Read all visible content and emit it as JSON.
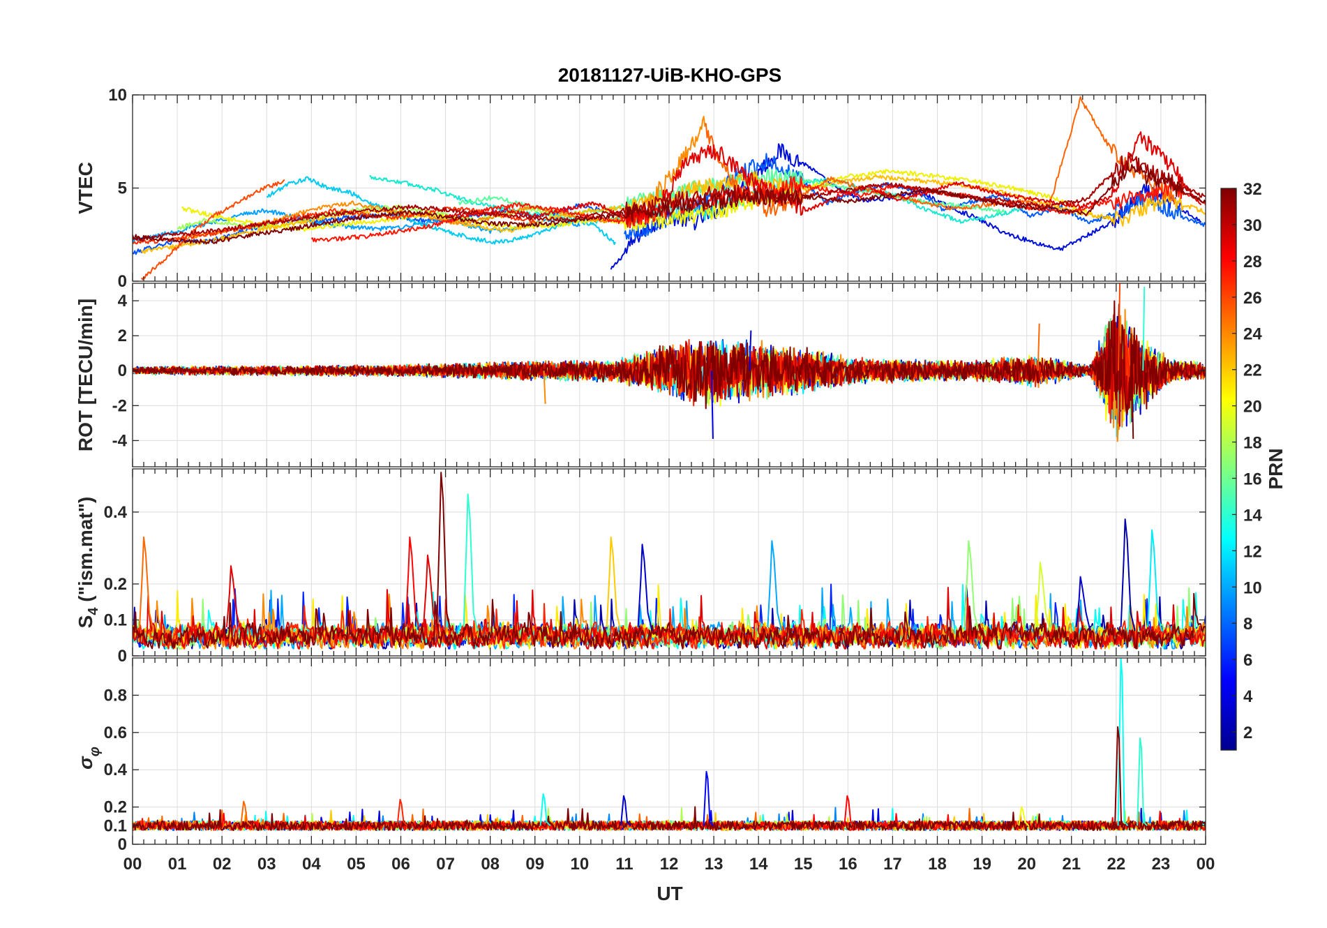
{
  "chart_data": {
    "type": "line",
    "title": "20181127-UiB-KHO-GPS",
    "xlabel": "UT",
    "xlim": [
      0,
      24
    ],
    "x_tick_labels": [
      "00",
      "01",
      "02",
      "03",
      "04",
      "05",
      "06",
      "07",
      "08",
      "09",
      "10",
      "11",
      "12",
      "13",
      "14",
      "15",
      "16",
      "17",
      "18",
      "19",
      "20",
      "21",
      "22",
      "23",
      "00"
    ],
    "panels": [
      {
        "id": "vtec",
        "ylabel": "VTEC",
        "ylim": [
          0,
          10
        ],
        "y_ticks": [
          0,
          5,
          10
        ],
        "y_tick_labels": [
          "0",
          "5",
          "10"
        ],
        "series": [
          {
            "name": "PRN 2",
            "prn": 2,
            "color": "#0010d8",
            "t_start": 10.7,
            "t_end": 23.9,
            "values": [
              0.6,
              2.5,
              3.5,
              3.2,
              4.0,
              5.5,
              7.0,
              6.2,
              5.0,
              4.3,
              4.5,
              4.8,
              4.0,
              3.4,
              2.6,
              2.1,
              1.7,
              2.5,
              3.3,
              4.8,
              4.2,
              3.2
            ]
          },
          {
            "name": "PRN 5",
            "prn": 5,
            "color": "#0052ff",
            "t_start": 0.0,
            "t_end": 10.5,
            "values": [
              1.5,
              1.9,
              2.2,
              2.1,
              2.4,
              2.8,
              3.1,
              3.3,
              3.2,
              3.4,
              3.5,
              3.6,
              3.3,
              3.2,
              3.4,
              3.6,
              3.8,
              3.5,
              3.6,
              4.1,
              3.8
            ]
          },
          {
            "name": "PRN 7",
            "prn": 7,
            "color": "#005cff",
            "t_start": 11.0,
            "t_end": 24.0,
            "values": [
              2.5,
              3.0,
              3.8,
              4.5,
              5.8,
              6.5,
              5.5,
              4.2,
              4.8,
              5.2,
              4.9,
              3.8,
              4.3,
              4.6,
              3.5,
              4.0,
              3.1,
              3.8,
              4.5,
              3.6,
              3.0
            ]
          },
          {
            "name": "PRN 9",
            "prn": 9,
            "color": "#00a0ff",
            "t_start": 0.0,
            "t_end": 10.0,
            "values": [
              2.2,
              2.4,
              2.7,
              3.0,
              3.3,
              3.6,
              3.8,
              3.5,
              3.2,
              3.0,
              2.9,
              2.8,
              2.9,
              3.1,
              3.3,
              3.0,
              2.7,
              2.8,
              3.1,
              3.4,
              3.0
            ]
          },
          {
            "name": "PRN 11",
            "prn": 11,
            "color": "#00caf0",
            "t_start": 3.0,
            "t_end": 10.8,
            "values": [
              4.5,
              5.2,
              5.5,
              5.0,
              4.8,
              4.2,
              3.8,
              3.3,
              2.9,
              2.6,
              2.3,
              2.1,
              2.2,
              2.5,
              2.9,
              3.3,
              3.0,
              2.0
            ]
          },
          {
            "name": "PRN 13",
            "prn": 13,
            "color": "#18e8d0",
            "t_start": 5.3,
            "t_end": 20.0,
            "values": [
              5.6,
              5.3,
              4.9,
              4.3,
              3.9,
              3.6,
              3.4,
              3.2,
              3.5,
              3.8,
              3.6,
              4.2,
              4.8,
              5.2,
              5.5,
              5.0,
              4.6,
              3.8,
              3.2,
              3.5,
              4.0
            ]
          },
          {
            "name": "PRN 15",
            "prn": 15,
            "color": "#55ff9c",
            "t_start": 7.3,
            "t_end": 19.5,
            "values": [
              4.2,
              4.5,
              4.0,
              3.6,
              3.8,
              4.3,
              4.8,
              5.1,
              5.5,
              5.6,
              5.2,
              4.9,
              4.5,
              4.2,
              4.0,
              3.7
            ]
          },
          {
            "name": "PRN 18",
            "prn": 18,
            "color": "#a0ff55",
            "t_start": 1.0,
            "t_end": 9.5,
            "values": [
              2.8,
              3.3,
              3.1,
              2.9,
              3.0,
              3.4,
              3.7,
              3.9,
              4.0,
              3.8,
              3.5,
              3.3,
              3.6,
              3.9,
              3.5
            ]
          },
          {
            "name": "PRN 20",
            "prn": 20,
            "color": "#f0f000",
            "t_start": 1.1,
            "t_end": 21.5,
            "values": [
              3.9,
              3.4,
              3.0,
              2.8,
              3.1,
              3.3,
              3.6,
              3.2,
              2.9,
              3.0,
              3.3,
              3.1,
              3.4,
              3.8,
              4.4,
              5.0,
              5.6,
              5.9,
              5.7,
              5.4,
              5.0,
              4.5,
              3.5
            ]
          },
          {
            "name": "PRN 22",
            "prn": 22,
            "color": "#ffbe00",
            "t_start": 0.2,
            "t_end": 24.0,
            "values": [
              1.6,
              1.9,
              2.3,
              2.8,
              3.2,
              3.6,
              3.8,
              3.5,
              3.0,
              2.7,
              3.4,
              3.8,
              4.0,
              4.6,
              5.2,
              5.5,
              4.8,
              5.3,
              5.6,
              5.4,
              5.2,
              4.8,
              4.2,
              3.6,
              3.3,
              4.5,
              3.7
            ]
          },
          {
            "name": "PRN 24",
            "prn": 24,
            "color": "#ff8c00",
            "t_start": 1.0,
            "t_end": 12.8,
            "values": [
              2.2,
              2.6,
              2.9,
              3.4,
              3.9,
              4.2,
              3.8,
              3.5,
              3.1,
              3.4,
              4.0,
              3.6,
              3.2,
              3.5,
              5.5,
              8.5
            ]
          },
          {
            "name": "PRN 25",
            "prn": 25,
            "color": "#ff6400",
            "t_start": 12.8,
            "t_end": 23.3,
            "values": [
              8.2,
              5.0,
              3.8,
              4.5,
              5.5,
              5.0,
              4.6,
              4.2,
              3.9,
              4.1,
              4.3,
              4.0,
              9.8,
              7.0,
              5.5,
              4.5
            ]
          },
          {
            "name": "PRN 26",
            "prn": 26,
            "color": "#ff4a00",
            "t_start": 0.2,
            "t_end": 3.4,
            "values": [
              0.1,
              1.2,
              2.5,
              3.5,
              4.2,
              4.9,
              5.4
            ]
          },
          {
            "name": "PRN 27",
            "prn": 27,
            "color": "#ff3200",
            "t_start": 0.0,
            "t_end": 9.0,
            "values": [
              2.0,
              2.2,
              2.4,
              2.6,
              2.9,
              3.2,
              3.5,
              3.8,
              3.6,
              3.4,
              3.6,
              3.9,
              3.8,
              3.5,
              3.2
            ]
          },
          {
            "name": "PRN 28",
            "prn": 28,
            "color": "#ff1400",
            "t_start": 4.0,
            "t_end": 24.0,
            "values": [
              2.2,
              2.3,
              2.5,
              2.8,
              3.2,
              3.8,
              4.1,
              3.9,
              3.5,
              3.2,
              3.6,
              4.1,
              4.5,
              4.8,
              5.2,
              4.9,
              4.6,
              5.1,
              4.8,
              4.6,
              4.2,
              3.9,
              3.7,
              4.2,
              4.5,
              5.0,
              4.2
            ]
          },
          {
            "name": "PRN 29",
            "prn": 29,
            "color": "#e00000",
            "t_start": 7.0,
            "t_end": 23.9,
            "values": [
              3.5,
              3.6,
              3.8,
              3.5,
              3.9,
              4.2,
              3.3,
              3.9,
              6.5,
              7.0,
              5.5,
              4.5,
              3.8,
              4.6,
              5.0,
              4.4,
              4.8,
              5.3,
              4.8,
              4.5,
              4.3,
              4.0,
              4.5,
              7.8,
              6.2,
              4.0
            ]
          },
          {
            "name": "PRN 31",
            "prn": 31,
            "color": "#a80000",
            "t_start": 0.0,
            "t_end": 24.0,
            "values": [
              2.2,
              2.5,
              2.7,
              3.0,
              3.3,
              3.6,
              3.8,
              4.0,
              3.8,
              3.6,
              3.4,
              3.3,
              3.7,
              4.0,
              4.5,
              4.8,
              4.4,
              4.6,
              4.9,
              5.2,
              4.9,
              4.5,
              4.3,
              4.0,
              4.4,
              6.5,
              5.5,
              4.5
            ]
          },
          {
            "name": "PRN 32",
            "prn": 32,
            "color": "#800000",
            "t_start": 0.0,
            "t_end": 24.0,
            "values": [
              2.4,
              2.2,
              2.1,
              2.5,
              2.8,
              3.2,
              3.5,
              3.7,
              3.4,
              3.1,
              3.0,
              3.2,
              3.5,
              3.8,
              4.1,
              4.4,
              4.6,
              4.5,
              4.3,
              4.6,
              4.9,
              4.5,
              4.1,
              3.9,
              3.6,
              6.0,
              5.3,
              4.2
            ]
          }
        ]
      },
      {
        "id": "rot",
        "ylabel": "ROT [TECU/min]",
        "ylim": [
          -5.5,
          5
        ],
        "y_ticks": [
          -4,
          -2,
          0,
          2,
          4
        ],
        "y_tick_labels": [
          "-4",
          "-2",
          "0",
          "2",
          "4"
        ],
        "envelope": [
          {
            "t": 0,
            "amp": 0.25
          },
          {
            "t": 6,
            "amp": 0.35
          },
          {
            "t": 9,
            "amp": 0.6
          },
          {
            "t": 10.8,
            "amp": 0.7
          },
          {
            "t": 11.5,
            "amp": 1.2
          },
          {
            "t": 12.8,
            "amp": 2.2
          },
          {
            "t": 13.6,
            "amp": 2.0
          },
          {
            "t": 15,
            "amp": 1.4
          },
          {
            "t": 16.2,
            "amp": 0.8
          },
          {
            "t": 18.7,
            "amp": 0.6
          },
          {
            "t": 20.2,
            "amp": 1.0
          },
          {
            "t": 21.4,
            "amp": 0.3
          },
          {
            "t": 22.0,
            "amp": 4.5
          },
          {
            "t": 22.6,
            "amp": 2.5
          },
          {
            "t": 23.2,
            "amp": 0.7
          },
          {
            "t": 24,
            "amp": 0.5
          }
        ],
        "peaks": [
          {
            "t": 12.95,
            "value": -3.9
          },
          {
            "t": 13.8,
            "value": 2.3
          },
          {
            "t": 20.25,
            "value": 2.7
          },
          {
            "t": 22.05,
            "value": 5.0
          },
          {
            "t": 22.6,
            "value": 4.8
          },
          {
            "t": 22.35,
            "value": -3.9
          },
          {
            "t": 9.2,
            "value": -1.9
          }
        ]
      },
      {
        "id": "s4",
        "ylabel": "S4 (\"ism.mat\")",
        "ylim": [
          0,
          0.52
        ],
        "y_ticks": [
          0,
          0.1,
          0.2,
          0.4
        ],
        "y_tick_labels": [
          "0",
          "0.1",
          "0.2",
          "0.4"
        ],
        "baseline": 0.05,
        "peaks": [
          {
            "t": 6.9,
            "value": 0.51,
            "prn": 32
          },
          {
            "t": 7.5,
            "value": 0.45,
            "prn": 14
          },
          {
            "t": 22.2,
            "value": 0.38,
            "prn": 2
          },
          {
            "t": 22.8,
            "value": 0.35,
            "prn": 12
          },
          {
            "t": 0.25,
            "value": 0.33,
            "prn": 25
          },
          {
            "t": 6.2,
            "value": 0.33,
            "prn": 28
          },
          {
            "t": 10.7,
            "value": 0.33,
            "prn": 22
          },
          {
            "t": 11.4,
            "value": 0.31,
            "prn": 3
          },
          {
            "t": 18.7,
            "value": 0.32,
            "prn": 17
          },
          {
            "t": 14.3,
            "value": 0.32,
            "prn": 10
          },
          {
            "t": 20.3,
            "value": 0.26,
            "prn": 19
          },
          {
            "t": 2.2,
            "value": 0.25,
            "prn": 29
          },
          {
            "t": 6.6,
            "value": 0.28,
            "prn": 29
          },
          {
            "t": 21.2,
            "value": 0.22,
            "prn": 3
          }
        ]
      },
      {
        "id": "sigma_phi",
        "ylabel": "σ φ",
        "ylim": [
          0,
          1.0
        ],
        "y_ticks": [
          0,
          0.1,
          0.2,
          0.4,
          0.6,
          0.8
        ],
        "y_tick_labels": [
          "0",
          "0.1",
          "0.2",
          "0.4",
          "0.6",
          "0.8"
        ],
        "baseline": 0.1,
        "peaks": [
          {
            "t": 22.12,
            "value": 1.0,
            "prn": 13
          },
          {
            "t": 22.05,
            "value": 0.63,
            "prn": 32
          },
          {
            "t": 22.55,
            "value": 0.57,
            "prn": 14
          },
          {
            "t": 12.85,
            "value": 0.39,
            "prn": 5
          },
          {
            "t": 9.2,
            "value": 0.27,
            "prn": 13
          },
          {
            "t": 11.0,
            "value": 0.26,
            "prn": 3
          },
          {
            "t": 16.0,
            "value": 0.26,
            "prn": 28
          },
          {
            "t": 2.5,
            "value": 0.23,
            "prn": 25
          },
          {
            "t": 6.0,
            "value": 0.24,
            "prn": 27
          },
          {
            "t": 19.9,
            "value": 0.2,
            "prn": 20
          }
        ]
      }
    ],
    "colorbar": {
      "label": "PRN",
      "range": [
        1,
        32
      ],
      "tick_values": [
        2,
        4,
        6,
        8,
        10,
        12,
        14,
        16,
        18,
        20,
        22,
        24,
        26,
        28,
        30,
        32
      ],
      "tick_labels": [
        "2",
        "4",
        "6",
        "8",
        "10",
        "12",
        "14",
        "16",
        "18",
        "20",
        "22",
        "24",
        "26",
        "28",
        "30",
        "32"
      ],
      "colormap": "jet",
      "colormap_stops": [
        "#00008f",
        "#0000ff",
        "#0080ff",
        "#00ffff",
        "#80ff80",
        "#ffff00",
        "#ff8000",
        "#ff0000",
        "#800000"
      ]
    }
  }
}
